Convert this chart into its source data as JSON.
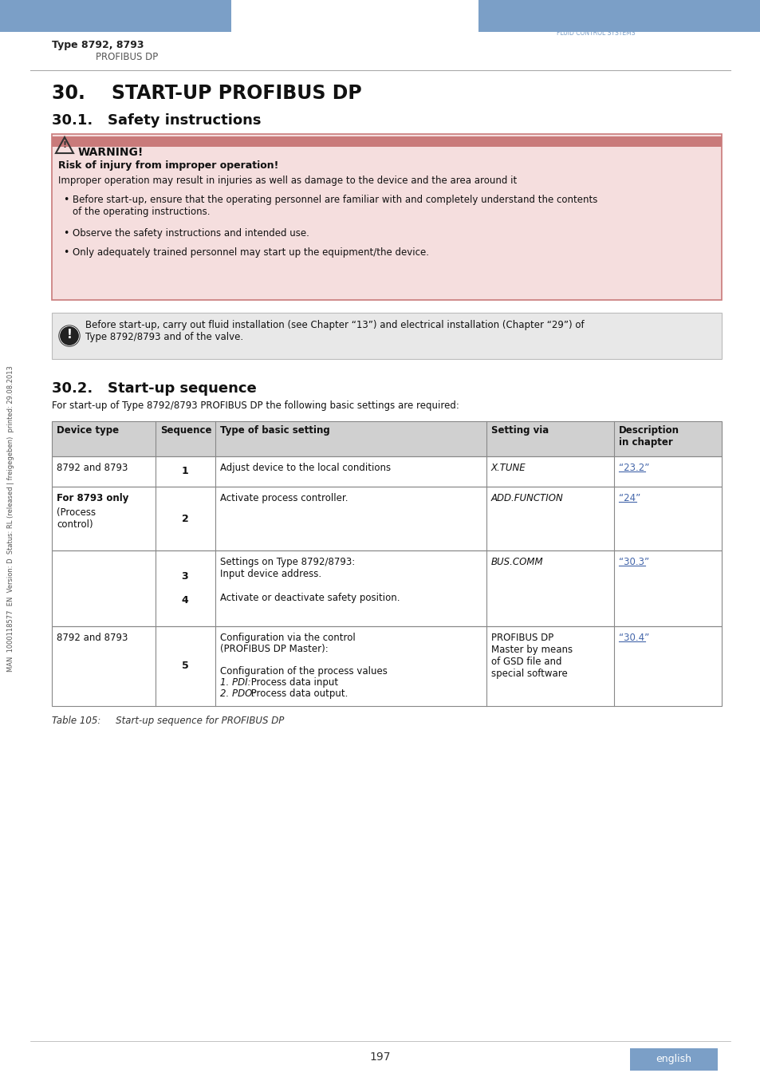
{
  "page_bg": "#ffffff",
  "header_bar_color": "#7b9fc7",
  "header_text_left": "Type 8792, 8793",
  "header_subtext_left": "PROFIBUS DP",
  "title_main": "30.    START-UP PROFIBUS DP",
  "title_sub": "30.1.   Safety instructions",
  "warning_label": "WARNING!",
  "warning_title": "Risk of injury from improper operation!",
  "warning_intro": "Improper operation may result in injuries as well as damage to the device and the area around it",
  "warning_bullets": [
    "Before start-up, ensure that the operating personnel are familiar with and completely understand the contents\nof the operating instructions.",
    "Observe the safety instructions and intended use.",
    "Only adequately trained personnel may start up the equipment/the device."
  ],
  "warning_bg": "#f5dede",
  "warning_bar_color": "#c97a7a",
  "note_text": "Before start-up, carry out fluid installation (see Chapter “13”) and electrical installation (Chapter “29”) of\nType 8792/8793 and of the valve.",
  "note_bg": "#e8e8e8",
  "section2_title": "30.2.   Start-up sequence",
  "section2_intro": "For start-up of Type 8792/8793 PROFIBUS DP the following basic settings are required:",
  "table_header_bg": "#d0d0d0",
  "table_header_cols": [
    "Device type",
    "Sequence",
    "Type of basic setting",
    "Setting via",
    "Description\nin chapter"
  ],
  "table_rows": [
    {
      "device": "8792 and 8793",
      "device_bold_first": false,
      "sequence": "1",
      "setting": "Adjust device to the local conditions",
      "via": "X.TUNE",
      "via_italic": true,
      "chapter": "“23.2”",
      "chapter_underline": true
    },
    {
      "device": "For 8793 only\n\n(Process\ncontrol)",
      "device_bold_first": true,
      "sequence": "2",
      "setting": "Activate process controller.",
      "via": "ADD.FUNCTION",
      "via_italic": true,
      "chapter": "“24”",
      "chapter_underline": true
    },
    {
      "device": "",
      "device_bold_first": false,
      "sequence": "3\n\n4",
      "setting": "Settings on Type 8792/8793:\nInput device address.\n\nActivate or deactivate safety position.",
      "via": "BUS.COMM",
      "via_italic": true,
      "chapter": "“30.3”",
      "chapter_underline": true
    },
    {
      "device": "8792 and 8793",
      "device_bold_first": false,
      "sequence": "5",
      "setting": "Configuration via the control\n(PROFIBUS DP Master):\n\nConfiguration of the process values\n1. PDI: Process data input\n2. PDO: Process data output.",
      "via": "PROFIBUS DP\nMaster by means\nof GSD file and\nspecial software",
      "via_italic": false,
      "chapter": "“30.4”",
      "chapter_underline": true
    }
  ],
  "table_caption": "Table 105:     Start-up sequence for PROFIBUS DP",
  "page_number": "197",
  "footer_lang": "english",
  "sidebar_text": "MAN  1000118577  EN  Version: D  Status: RL (released | freigegeben)  printed: 29.08.2013"
}
